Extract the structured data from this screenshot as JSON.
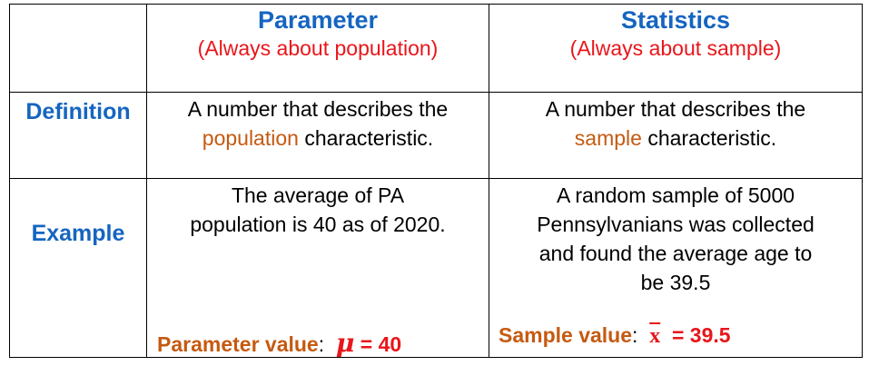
{
  "header": {
    "parameter": {
      "title": "Parameter",
      "subtitle": "(Always about population)"
    },
    "statistics": {
      "title": "Statistics",
      "subtitle": "(Always about sample)"
    }
  },
  "rows": {
    "definition": {
      "label": "Definition",
      "parameter": {
        "line1": "A number that describes the",
        "highlight": "population",
        "rest": " characteristic."
      },
      "statistics": {
        "line1": "A number that describes the",
        "highlight": "sample",
        "rest": " characteristic."
      }
    },
    "example": {
      "label": "Example",
      "parameter": {
        "lines": [
          "The average of PA",
          "population is 40 as of 2020."
        ],
        "value_label": "Parameter value",
        "value_colon": ":",
        "value_symbol": "μ",
        "value_eq": " = 40"
      },
      "statistics": {
        "lines": [
          "A random sample of 5000",
          "Pennsylvanians was collected",
          "and found the average age to",
          "be 39.5"
        ],
        "value_label": "Sample value",
        "value_colon": ":",
        "value_symbol": "x",
        "value_eq": "  = 39.5"
      }
    }
  },
  "colors": {
    "header_blue": "#1565C0",
    "accent_red": "#E8161B",
    "accent_orange": "#C55A11",
    "grid": "#000000"
  }
}
